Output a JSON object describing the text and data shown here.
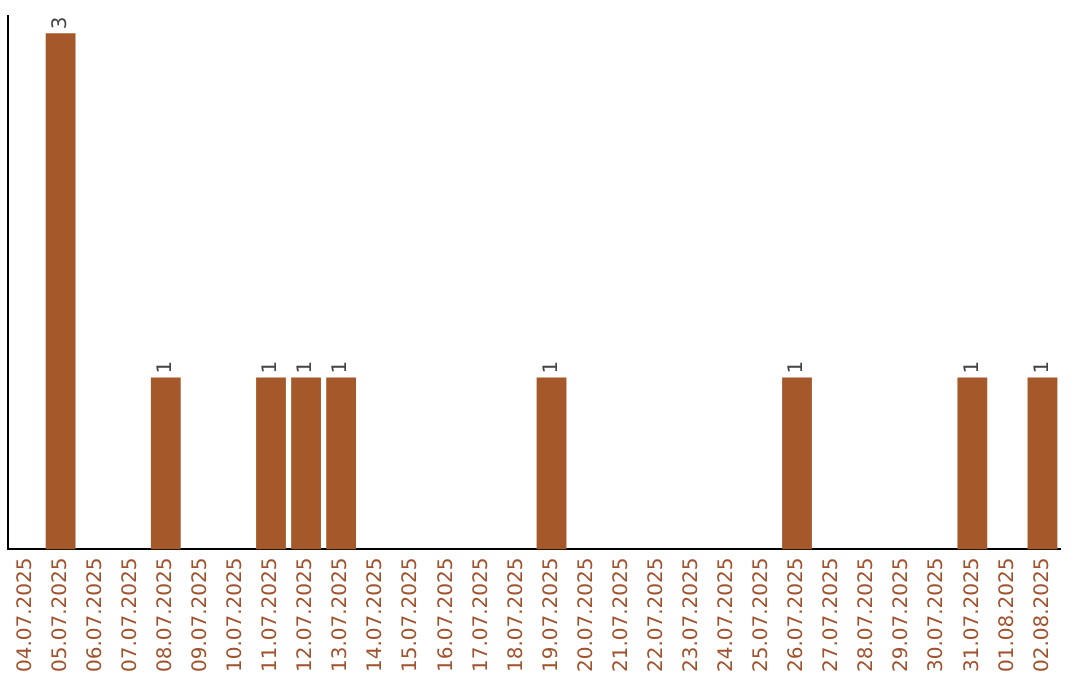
{
  "chart_data": {
    "type": "bar",
    "categories": [
      "04.07.2025",
      "05.07.2025",
      "06.07.2025",
      "07.07.2025",
      "08.07.2025",
      "09.07.2025",
      "10.07.2025",
      "11.07.2025",
      "12.07.2025",
      "13.07.2025",
      "14.07.2025",
      "15.07.2025",
      "16.07.2025",
      "17.07.2025",
      "18.07.2025",
      "19.07.2025",
      "20.07.2025",
      "21.07.2025",
      "22.07.2025",
      "23.07.2025",
      "24.07.2025",
      "25.07.2025",
      "26.07.2025",
      "27.07.2025",
      "28.07.2025",
      "29.07.2025",
      "30.07.2025",
      "31.07.2025",
      "01.08.2025",
      "02.08.2025"
    ],
    "values": [
      0,
      3,
      0,
      0,
      1,
      0,
      0,
      1,
      1,
      1,
      0,
      0,
      0,
      0,
      0,
      1,
      0,
      0,
      0,
      0,
      0,
      0,
      1,
      0,
      0,
      0,
      0,
      1,
      0,
      1
    ],
    "value_labels": [
      null,
      "3",
      null,
      null,
      "1",
      null,
      null,
      "1",
      "1",
      "1",
      null,
      null,
      null,
      null,
      null,
      "1",
      null,
      null,
      null,
      null,
      null,
      null,
      "1",
      null,
      null,
      null,
      null,
      "1",
      null,
      "1"
    ],
    "color": "#a5592a",
    "ylim": [
      0,
      3.1
    ],
    "tick_labels": "x",
    "grid": false,
    "legend": false
  }
}
